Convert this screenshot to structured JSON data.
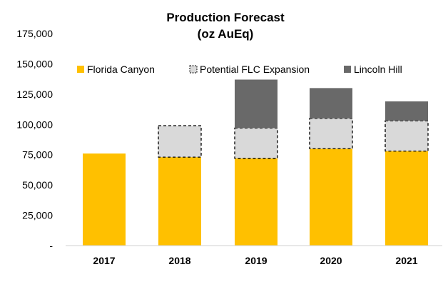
{
  "chart_data": {
    "type": "bar",
    "stacked": true,
    "title": "Production Forecast",
    "subtitle": "(oz AuEq)",
    "xlabel": "",
    "ylabel": "",
    "ylim": [
      0,
      175000
    ],
    "yticks": [
      {
        "value": 0,
        "label": "-"
      },
      {
        "value": 25000,
        "label": "25,000"
      },
      {
        "value": 50000,
        "label": "50,000"
      },
      {
        "value": 75000,
        "label": "75,000"
      },
      {
        "value": 100000,
        "label": "100,000"
      },
      {
        "value": 125000,
        "label": "125,000"
      },
      {
        "value": 150000,
        "label": "150,000"
      },
      {
        "value": 175000,
        "label": "175,000"
      }
    ],
    "grid": false,
    "legend_position": "top",
    "categories": [
      "2017",
      "2018",
      "2019",
      "2020",
      "2021"
    ],
    "series": [
      {
        "name": "Florida Canyon",
        "color": "#FFC000",
        "style": "solid",
        "values": [
          76000,
          73000,
          72000,
          80000,
          78000
        ]
      },
      {
        "name": "Potential FLC Expansion",
        "color": "#D9D9D9",
        "style": "dashed",
        "values": [
          0,
          26000,
          25000,
          25000,
          25000
        ]
      },
      {
        "name": "Lincoln Hill",
        "color": "#696969",
        "style": "solid",
        "values": [
          0,
          0,
          40000,
          25000,
          16000
        ]
      }
    ]
  }
}
